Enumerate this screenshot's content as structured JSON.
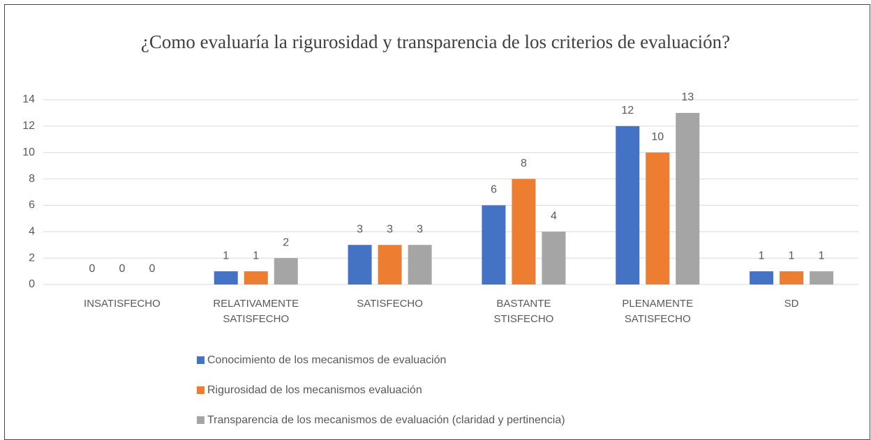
{
  "chart_data": {
    "type": "bar",
    "title": "¿Como evaluaría la rigurosidad y transparencia de los criterios de evaluación?",
    "categories": [
      "INSATISFECHO",
      "RELATIVAMENTE SATISFECHO",
      "SATISFECHO",
      "BASTANTE STISFECHO",
      "PLENAMENTE SATISFECHO",
      "SD"
    ],
    "series": [
      {
        "name": "Conocimiento de los mecanismos de evaluación",
        "color": "#4472c4",
        "values": [
          0,
          1,
          3,
          6,
          12,
          1
        ]
      },
      {
        "name": "Rigurosidad de los mecanismos evaluación",
        "color": "#ed7d31",
        "values": [
          0,
          1,
          3,
          8,
          10,
          1
        ]
      },
      {
        "name": "Transparencia de los mecanismos de evaluación (claridad y pertinencia)",
        "color": "#a5a5a5",
        "values": [
          0,
          2,
          3,
          4,
          13,
          1
        ]
      }
    ],
    "ylim": [
      0,
      14
    ],
    "yticks": [
      0,
      2,
      4,
      6,
      8,
      10,
      12,
      14
    ],
    "grid": true,
    "legend": "bottom"
  }
}
